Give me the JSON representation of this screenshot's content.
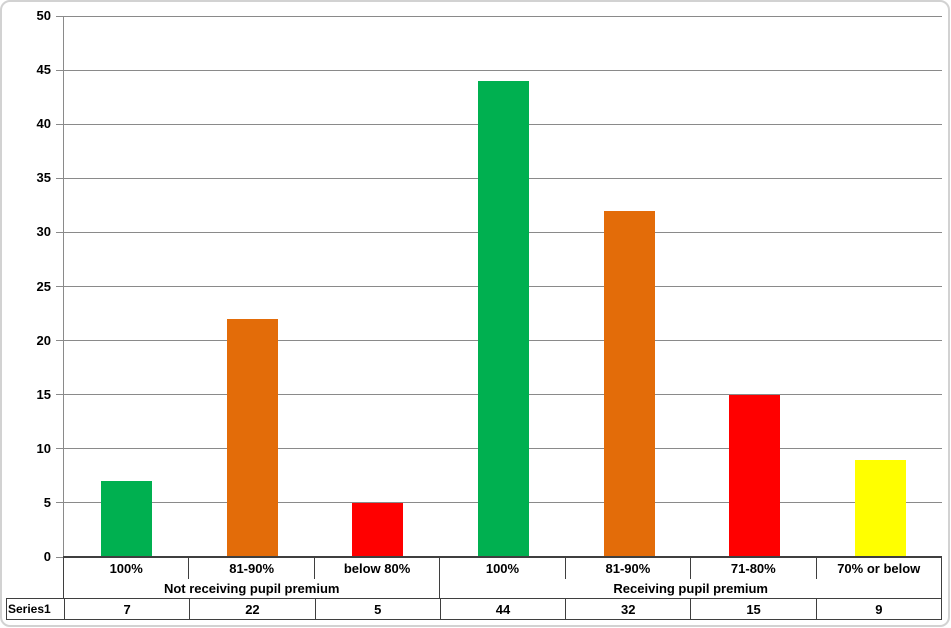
{
  "chart_data": {
    "type": "bar",
    "title": "",
    "xlabel": "",
    "ylabel": "",
    "categories": [
      "100%",
      "81-90%",
      "below 80%",
      "100%",
      "81-90%",
      "71-80%",
      "70% or below"
    ],
    "category_groups": [
      {
        "label": "Not receiving pupil premium",
        "span": 3
      },
      {
        "label": "Receiving pupil premium",
        "span": 4
      }
    ],
    "series": [
      {
        "name": "Series1",
        "values": [
          7,
          22,
          5,
          44,
          32,
          15,
          9
        ]
      }
    ],
    "bar_colors": [
      "#00B050",
      "#E36C09",
      "#FF0000",
      "#00B050",
      "#E36C09",
      "#FF0000",
      "#FFFF00"
    ],
    "ylim": [
      0,
      50
    ],
    "ytick_step": 5,
    "grid": "horizontal",
    "legend_position": "none",
    "data_table_shown": true
  },
  "colors": {
    "gridline": "#8a8a8a",
    "axis_line": "#3f3f3f",
    "table_border": "#3f3f3f",
    "frame_border": "#d2d2d2",
    "background": "#ffffff"
  }
}
